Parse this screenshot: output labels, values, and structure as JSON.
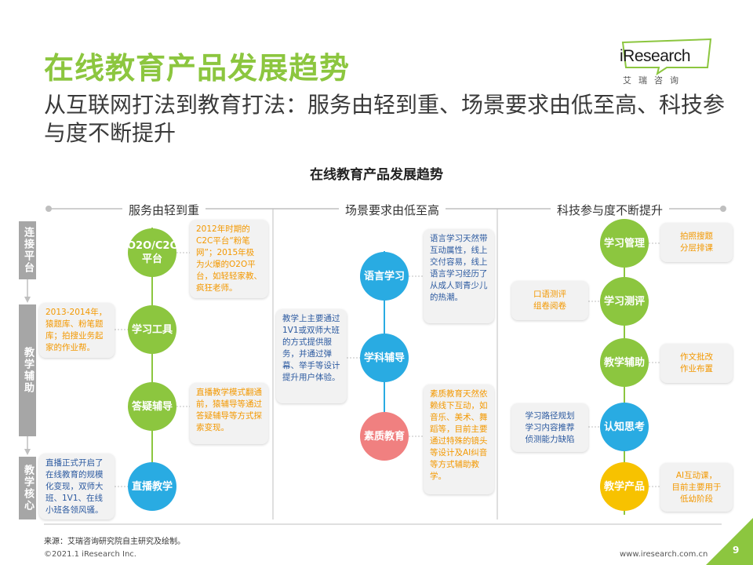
{
  "title": "在线教育产品发展趋势",
  "subtitle": "从互联网打法到教育打法：服务由轻到重、场景要求由低至高、科技参与度不断提升",
  "logo": {
    "text": "iResearch",
    "cn": "艾瑞咨询"
  },
  "diagram_title": "在线教育产品发展趋势",
  "sections": [
    "服务由轻到重",
    "场景要求由低至高",
    "科技参与度不断提升"
  ],
  "row_labels": [
    "连接平台",
    "教学辅助",
    "教学核心"
  ],
  "col1": {
    "circles": [
      "O2O/C2C平台",
      "学习工具",
      "答疑辅导",
      "直播教学"
    ],
    "notes": [
      "2012年时期的C2C平台“粉笔网”；2015年极为火爆的O2O平台，如轻轻家教、疯狂老师。",
      "2013-2014年，猿题库、粉笔题库；拍搜业务起家的作业帮。",
      "直播教学模式翻通前，猿辅导等通过答疑辅导等方式探索变现。",
      "直播正式开启了在线教育的规模化变现，双师大班、1V1、在线小班各领风骚。"
    ]
  },
  "col2": {
    "circles": [
      "语言学习",
      "学科辅导",
      "素质教育"
    ],
    "notes": [
      "语言学习天然带互动属性，线上交付容易，线上语言学习经历了从成人到青少儿的热潮。",
      "教学上主要通过1V1或双师大班的方式提供服务，并通过弹幕、举手等设计提升用户体验。",
      "素质教育天然依赖线下互动，如音乐、美术、舞蹈等，目前主要通过特殊的镜头等设计及AI纠音等方式辅助教学。"
    ]
  },
  "col3": {
    "circles": [
      "学习管理",
      "学习测评",
      "教学辅助",
      "认知思考",
      "教学产品"
    ],
    "notes": [
      "拍照搜题\n分层排课",
      "口语测评\n组卷阅卷",
      "作文批改\n作业布置",
      "学习路径规划\n学习内容推荐\n侦测能力缺陷",
      "AI互动课，\n目前主要用于\n低幼阶段"
    ]
  },
  "footer": {
    "source": "来源：艾瑞咨询研究院自主研究及绘制。",
    "copyright": "©2021.1 iResearch Inc.",
    "website": "www.iresearch.com.cn",
    "page": "9"
  },
  "colors": {
    "green": "#8cc63f",
    "blue": "#29abe2",
    "pink": "#f08080",
    "yellow": "#f7c200",
    "gray": "#a6a6a6",
    "orange_text": "#f39800"
  }
}
